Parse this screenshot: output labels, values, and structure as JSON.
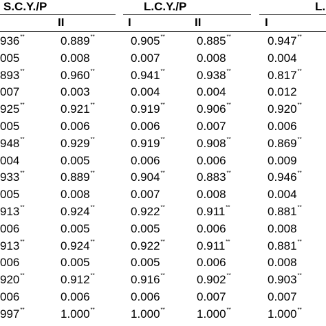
{
  "headers": [
    "S.C.Y./P",
    "L.C.Y./P",
    "L."
  ],
  "subheaders": [
    "II",
    "I",
    "II",
    "I"
  ],
  "rows": [
    {
      "c0": "936",
      "s0": "**",
      "c1": "0.889",
      "s1": "**",
      "c2": "0.905",
      "s2": "**",
      "c3": "0.885",
      "s3": "**",
      "c4": "0.947",
      "s4": "**"
    },
    {
      "c0": "005",
      "s0": "",
      "c1": "0.008",
      "s1": "",
      "c2": "0.007",
      "s2": "",
      "c3": "0.008",
      "s3": "",
      "c4": "0.004",
      "s4": ""
    },
    {
      "c0": "893",
      "s0": "**",
      "c1": "0.960",
      "s1": "**",
      "c2": "0.941",
      "s2": "**",
      "c3": "0.938",
      "s3": "**",
      "c4": "0.817",
      "s4": "**"
    },
    {
      "c0": "007",
      "s0": "",
      "c1": "0.003",
      "s1": "",
      "c2": "0.004",
      "s2": "",
      "c3": "0.004",
      "s3": "",
      "c4": "0.012",
      "s4": ""
    },
    {
      "c0": "925",
      "s0": "**",
      "c1": "0.921",
      "s1": "**",
      "c2": "0.919",
      "s2": "**",
      "c3": "0.906",
      "s3": "**",
      "c4": "0.920",
      "s4": "**"
    },
    {
      "c0": "005",
      "s0": "",
      "c1": "0.006",
      "s1": "",
      "c2": "0.006",
      "s2": "",
      "c3": "0.007",
      "s3": "",
      "c4": "0.006",
      "s4": ""
    },
    {
      "c0": "948",
      "s0": "**",
      "c1": "0.929",
      "s1": "**",
      "c2": "0.919",
      "s2": "**",
      "c3": "0.908",
      "s3": "**",
      "c4": "0.869",
      "s4": "**"
    },
    {
      "c0": "004",
      "s0": "",
      "c1": "0.005",
      "s1": "",
      "c2": "0.006",
      "s2": "",
      "c3": "0.006",
      "s3": "",
      "c4": "0.009",
      "s4": ""
    },
    {
      "c0": "933",
      "s0": "**",
      "c1": "0.889",
      "s1": "**",
      "c2": "0.904",
      "s2": "**",
      "c3": "0.883",
      "s3": "**",
      "c4": "0.946",
      "s4": "**"
    },
    {
      "c0": "005",
      "s0": "",
      "c1": "0.008",
      "s1": "",
      "c2": "0.007",
      "s2": "",
      "c3": "0.008",
      "s3": "",
      "c4": "0.004",
      "s4": ""
    },
    {
      "c0": "913",
      "s0": "**",
      "c1": "0.924",
      "s1": "**",
      "c2": "0.922",
      "s2": "**",
      "c3": "0.911",
      "s3": "**",
      "c4": "0.881",
      "s4": "**"
    },
    {
      "c0": "006",
      "s0": "",
      "c1": "0.005",
      "s1": "",
      "c2": "0.005",
      "s2": "",
      "c3": "0.006",
      "s3": "",
      "c4": "0.008",
      "s4": ""
    },
    {
      "c0": "913",
      "s0": "**",
      "c1": "0.924",
      "s1": "**",
      "c2": "0.922",
      "s2": "**",
      "c3": "0.911",
      "s3": "**",
      "c4": "0.881",
      "s4": "**"
    },
    {
      "c0": "006",
      "s0": "",
      "c1": "0.005",
      "s1": "",
      "c2": "0.005",
      "s2": "",
      "c3": "0.006",
      "s3": "",
      "c4": "0.008",
      "s4": ""
    },
    {
      "c0": "920",
      "s0": "**",
      "c1": "0.912",
      "s1": "**",
      "c2": "0.916",
      "s2": "**",
      "c3": "0.902",
      "s3": "**",
      "c4": "0.903",
      "s4": "**"
    },
    {
      "c0": "006",
      "s0": "",
      "c1": "0.006",
      "s1": "",
      "c2": "0.006",
      "s2": "",
      "c3": "0.007",
      "s3": "",
      "c4": "0.007",
      "s4": ""
    },
    {
      "c0": "997",
      "s0": "**",
      "c1": "1.000",
      "s1": "**",
      "c2": "1.000",
      "s2": "**",
      "c3": "1.000",
      "s3": "**",
      "c4": "1.000",
      "s4": "**"
    }
  ]
}
